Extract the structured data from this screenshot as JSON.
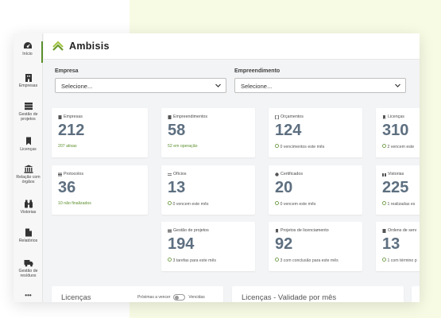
{
  "app": {
    "name": "Ambisis"
  },
  "sidebar": {
    "items": [
      {
        "label": "Início",
        "icon": "dashboard-icon"
      },
      {
        "label": "Empresas",
        "icon": "building-icon"
      },
      {
        "label": "Gestão de projetos",
        "icon": "projects-icon"
      },
      {
        "label": "Licenças",
        "icon": "bookmark-icon"
      },
      {
        "label": "Relação com órgãos",
        "icon": "bank-icon"
      },
      {
        "label": "Vistorias",
        "icon": "binoculars-icon"
      },
      {
        "label": "Relatórios",
        "icon": "report-icon"
      },
      {
        "label": "Gestão de resíduos",
        "icon": "truck-icon"
      },
      {
        "label": "•••",
        "icon": "more-icon"
      }
    ]
  },
  "filters": {
    "empresa": {
      "label": "Empresa",
      "value": "Selecione..."
    },
    "empreendimento": {
      "label": "Empreendimento",
      "value": "Selecione..."
    }
  },
  "cards": [
    {
      "title": "Empresas",
      "value": "212",
      "sub": "207 ativas",
      "sub_color": "green"
    },
    {
      "title": "Empreendimentos",
      "value": "58",
      "sub": "52 em operação",
      "sub_color": "green"
    },
    {
      "title": "Orçamentos",
      "value": "124",
      "sub": "0 vencimentos este mês",
      "sub_color": "gray"
    },
    {
      "title": "Licenças",
      "value": "310",
      "sub": "2 vencem este",
      "sub_color": "gray"
    },
    {
      "title": "Protocolos",
      "value": "36",
      "sub": "10 não finalizados",
      "sub_color": "green"
    },
    {
      "title": "Ofícios",
      "value": "13",
      "sub": "0 vencem este mês",
      "sub_color": "gray"
    },
    {
      "title": "Certificados",
      "value": "20",
      "sub": "0 vencem este mês",
      "sub_color": "gray"
    },
    {
      "title": "Vistorias",
      "value": "225",
      "sub": "1 realizadas es",
      "sub_color": "gray"
    },
    {
      "title": "Gestão de projetos",
      "value": "194",
      "sub": "3 tarefas para este mês",
      "sub_color": "gray"
    },
    {
      "title": "Projetos de licenciamento",
      "value": "92",
      "sub": "3 com conclusão para este mês",
      "sub_color": "gray"
    },
    {
      "title": "Ordens de serv",
      "value": "13",
      "sub": "1 com término p",
      "sub_color": "gray"
    }
  ],
  "panels": {
    "licencas": {
      "title": "Licenças",
      "toggle_left": "Próximas a vencer",
      "toggle_right": "Vencidas"
    },
    "validade": {
      "title": "Licenças - Validade por mês"
    }
  },
  "colors": {
    "accent": "#5a8f2b",
    "value": "#5d6f80"
  }
}
